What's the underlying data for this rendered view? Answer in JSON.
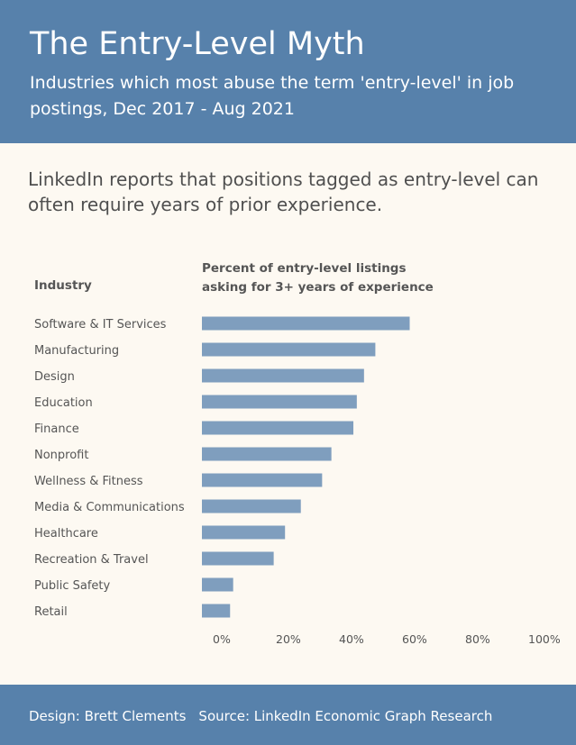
{
  "header": {
    "title": "The Entry-Level Myth",
    "subtitle": "Industries which most abuse the term 'entry-level' in job postings, Dec 2017 - Aug 2021"
  },
  "intro": "LinkedIn reports that positions tagged as entry-level can often require years of prior experience.",
  "footer": {
    "design": "Design: Brett Clements",
    "source": "Source: LinkedIn Economic Graph Research"
  },
  "colors": {
    "header_bg": "#5781ab",
    "bar": "#7f9ebe",
    "background": "#fdf9f2"
  },
  "chart_data": {
    "type": "bar",
    "orientation": "horizontal",
    "row_header": "Industry",
    "value_header": [
      "Percent of entry-level listings",
      "asking for 3+ years of experience"
    ],
    "categories": [
      "Software & IT Services",
      "Manufacturing",
      "Design",
      "Education",
      "Finance",
      "Nonprofit",
      "Wellness & Fitness",
      "Media & Communications",
      "Healthcare",
      "Recreation & Travel",
      "Public Safety",
      "Retail"
    ],
    "values": [
      60.5,
      50.5,
      47.2,
      45.1,
      44.1,
      37.7,
      35.0,
      28.8,
      24.2,
      20.9,
      9.1,
      8.2
    ],
    "x_ticks": [
      "0%",
      "20%",
      "40%",
      "60%",
      "80%",
      "100%"
    ],
    "xlim": [
      0,
      100
    ],
    "grid": false
  }
}
